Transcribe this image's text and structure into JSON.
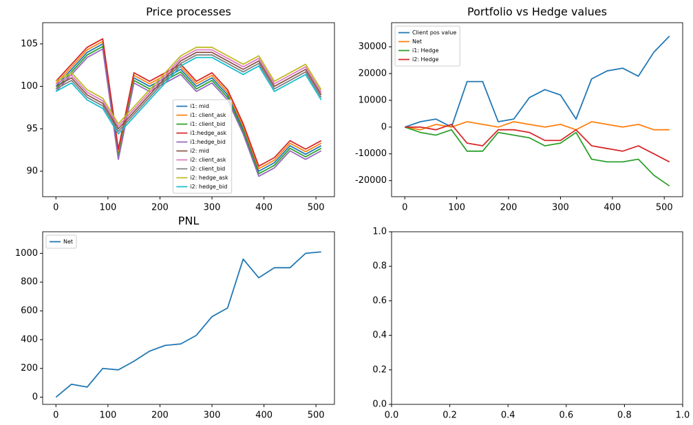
{
  "chart_data": [
    {
      "type": "line",
      "title": "Price processes",
      "x": [
        0,
        30,
        60,
        90,
        120,
        150,
        180,
        210,
        240,
        270,
        300,
        330,
        360,
        390,
        420,
        450,
        480,
        510
      ],
      "xlim": [
        -25.5,
        535.5
      ],
      "xticks": [
        0,
        100,
        200,
        300,
        400,
        500
      ],
      "ylim": [
        87,
        107.5
      ],
      "yticks": [
        90,
        95,
        100,
        105
      ],
      "legend": "lower center",
      "series": [
        {
          "name": "i1: mid",
          "color": "#1f77b4",
          "values": [
            100,
            102,
            104,
            105,
            92,
            101,
            100,
            101,
            102,
            100,
            101,
            99,
            95,
            90,
            91,
            93,
            92,
            93
          ]
        },
        {
          "name": "i1: client_ask",
          "color": "#ff7f0e",
          "values": [
            100.3,
            102.3,
            104.3,
            105.3,
            92.3,
            101.3,
            100.3,
            101.3,
            102.3,
            100.3,
            101.3,
            99.3,
            95.3,
            90.3,
            91.3,
            93.3,
            92.3,
            93.3
          ]
        },
        {
          "name": "i1: client_bid",
          "color": "#2ca02c",
          "values": [
            99.7,
            101.7,
            103.7,
            104.7,
            91.7,
            100.7,
            99.7,
            100.7,
            101.7,
            99.7,
            100.7,
            98.7,
            94.7,
            89.7,
            90.7,
            92.7,
            91.7,
            92.7
          ]
        },
        {
          "name": "i1:hedge_ask",
          "color": "#d62728",
          "values": [
            100.6,
            102.6,
            104.6,
            105.6,
            92.6,
            101.6,
            100.6,
            101.6,
            102.6,
            100.6,
            101.6,
            99.6,
            95.6,
            90.6,
            91.6,
            93.6,
            92.6,
            93.6
          ]
        },
        {
          "name": "i1:hedge_bid",
          "color": "#9467bd",
          "values": [
            99.4,
            101.4,
            103.4,
            104.4,
            91.4,
            100.4,
            99.4,
            100.4,
            101.4,
            99.4,
            100.4,
            98.4,
            94.4,
            89.4,
            90.4,
            92.4,
            91.4,
            92.4
          ]
        },
        {
          "name": "i2: mid",
          "color": "#8c564b",
          "values": [
            100,
            101,
            99,
            98,
            95,
            97,
            99,
            101,
            103,
            104,
            104,
            103,
            102,
            103,
            100,
            101,
            102,
            99
          ]
        },
        {
          "name": "i2: client_ask",
          "color": "#e377c2",
          "values": [
            100.3,
            101.3,
            99.3,
            98.3,
            95.3,
            97.3,
            99.3,
            101.3,
            103.3,
            104.3,
            104.3,
            103.3,
            102.3,
            103.3,
            100.3,
            101.3,
            102.3,
            99.3
          ]
        },
        {
          "name": "i2: client_bid",
          "color": "#7f7f7f",
          "values": [
            99.7,
            100.7,
            98.7,
            97.7,
            94.7,
            96.7,
            98.7,
            100.7,
            102.7,
            103.7,
            103.7,
            102.7,
            101.7,
            102.7,
            99.7,
            100.7,
            101.7,
            98.7
          ]
        },
        {
          "name": "i2: hedge_ask",
          "color": "#bcbd22",
          "values": [
            100.6,
            101.6,
            99.6,
            98.6,
            95.6,
            97.6,
            99.6,
            101.6,
            103.6,
            104.6,
            104.6,
            103.6,
            102.6,
            103.6,
            100.6,
            101.6,
            102.6,
            99.6
          ]
        },
        {
          "name": "i2: hedge_bid",
          "color": "#17becf",
          "values": [
            99.4,
            100.4,
            98.4,
            97.4,
            94.4,
            96.4,
            98.4,
            100.4,
            102.4,
            103.4,
            103.4,
            102.4,
            101.4,
            102.4,
            99.4,
            100.4,
            101.4,
            98.4
          ]
        }
      ]
    },
    {
      "type": "line",
      "title": "Portfolio vs Hedge values",
      "x": [
        0,
        30,
        60,
        90,
        120,
        150,
        180,
        210,
        240,
        270,
        300,
        330,
        360,
        390,
        420,
        450,
        480,
        510
      ],
      "xlim": [
        -25.5,
        535.5
      ],
      "xticks": [
        0,
        100,
        200,
        300,
        400,
        500
      ],
      "ylim": [
        -26000,
        39000
      ],
      "yticks": [
        -20000,
        -10000,
        0,
        10000,
        20000,
        30000
      ],
      "legend": "upper left",
      "series": [
        {
          "name": "Client pos value",
          "color": "#1f77b4",
          "values": [
            0,
            2000,
            3000,
            0,
            17000,
            17000,
            2000,
            3000,
            11000,
            14000,
            12000,
            3000,
            18000,
            21000,
            22000,
            19000,
            28000,
            34000
          ]
        },
        {
          "name": "Net",
          "color": "#ff7f0e",
          "values": [
            0,
            -1000,
            1000,
            0,
            2000,
            1000,
            0,
            2000,
            1000,
            0,
            1000,
            -1000,
            2000,
            1000,
            0,
            1000,
            -1000,
            -1000
          ]
        },
        {
          "name": "i1: Hedge",
          "color": "#2ca02c",
          "values": [
            0,
            -2000,
            -3000,
            -1000,
            -9000,
            -9000,
            -2000,
            -3000,
            -4000,
            -7000,
            -6000,
            -2000,
            -12000,
            -13000,
            -13000,
            -12000,
            -18000,
            -22000
          ]
        },
        {
          "name": "i2: Hedge",
          "color": "#d62728",
          "values": [
            0,
            0,
            -1000,
            1000,
            -6000,
            -7000,
            -1000,
            -1000,
            -2000,
            -5000,
            -5000,
            -1000,
            -7000,
            -8000,
            -9000,
            -7000,
            -10000,
            -13000
          ]
        }
      ]
    },
    {
      "type": "line",
      "title": "PNL",
      "x": [
        0,
        30,
        60,
        90,
        120,
        150,
        180,
        210,
        240,
        270,
        300,
        330,
        360,
        390,
        420,
        450,
        480,
        510
      ],
      "xlim": [
        -25.5,
        535.5
      ],
      "xticks": [
        0,
        100,
        200,
        300,
        400,
        500
      ],
      "ylim": [
        -50,
        1150
      ],
      "yticks": [
        0,
        200,
        400,
        600,
        800,
        1000
      ],
      "legend": "upper left",
      "series": [
        {
          "name": "Net",
          "color": "#1f77b4",
          "values": [
            0,
            90,
            70,
            200,
            190,
            250,
            320,
            360,
            370,
            430,
            560,
            620,
            960,
            830,
            900,
            900,
            1000,
            1010
          ]
        }
      ]
    },
    {
      "type": "line",
      "xlim": [
        0,
        1
      ],
      "xticks": [
        {
          "value": 0,
          "label": "0.0"
        },
        {
          "value": 0.2,
          "label": "0.2"
        },
        {
          "value": 0.4,
          "label": "0.4"
        },
        {
          "value": 0.6,
          "label": "0.6"
        },
        {
          "value": 0.8,
          "label": "0.8"
        },
        {
          "value": 1,
          "label": "1.0"
        }
      ],
      "ylim": [
        0,
        1
      ],
      "yticks": [
        {
          "value": 0,
          "label": "0.0"
        },
        {
          "value": 0.2,
          "label": "0.2"
        },
        {
          "value": 0.4,
          "label": "0.4"
        },
        {
          "value": 0.6,
          "label": "0.6"
        },
        {
          "value": 0.8,
          "label": "0.8"
        },
        {
          "value": 1,
          "label": "1.0"
        }
      ],
      "series": []
    }
  ]
}
